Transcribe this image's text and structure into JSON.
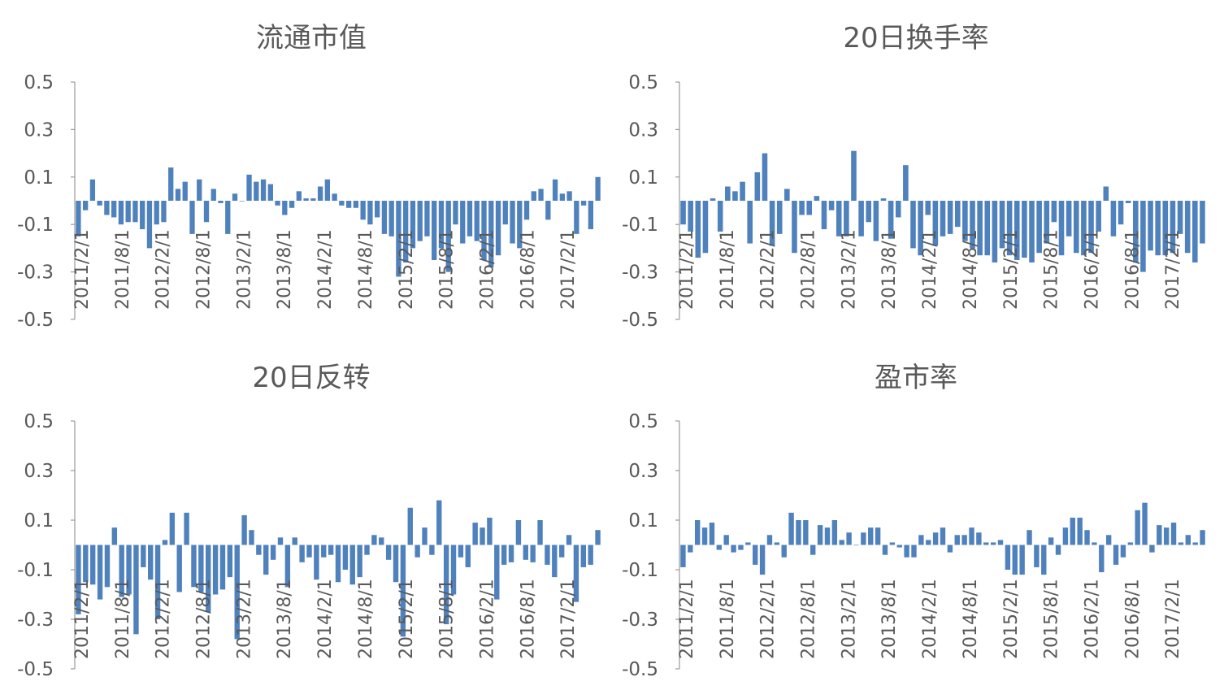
{
  "chart_data": [
    {
      "type": "bar",
      "title": "流通市值",
      "ylim": [
        -0.5,
        0.5
      ],
      "yticks": [
        "0.5",
        "0.3",
        "0.1",
        "-0.1",
        "-0.3",
        "-0.5"
      ],
      "tick_labels": [
        "2011/2/1",
        "2011/8/1",
        "2012/2/1",
        "2012/8/1",
        "2013/2/1",
        "2013/8/1",
        "2014/2/1",
        "2014/8/1",
        "2015/2/1",
        "2015/8/1",
        "2016/2/1",
        "2016/8/1",
        "2017/2/1"
      ],
      "color": "#4F81BD",
      "values": [
        -0.15,
        -0.04,
        0.09,
        -0.02,
        -0.06,
        -0.07,
        -0.1,
        -0.09,
        -0.09,
        -0.12,
        -0.2,
        -0.1,
        -0.09,
        0.14,
        0.05,
        0.08,
        -0.14,
        0.09,
        -0.09,
        0.05,
        -0.01,
        -0.14,
        0.03,
        0.0,
        0.11,
        0.08,
        0.09,
        0.07,
        -0.02,
        -0.06,
        -0.03,
        0.04,
        0.01,
        0.01,
        0.06,
        0.09,
        0.03,
        -0.02,
        -0.03,
        -0.03,
        -0.08,
        -0.1,
        -0.07,
        -0.14,
        -0.15,
        -0.32,
        -0.26,
        -0.2,
        -0.17,
        -0.15,
        -0.25,
        -0.2,
        -0.3,
        -0.1,
        -0.18,
        -0.15,
        -0.17,
        -0.25,
        -0.28,
        -0.23,
        -0.1,
        -0.18,
        -0.2,
        -0.08,
        0.04,
        0.05,
        -0.08,
        0.09,
        0.03,
        0.04,
        -0.14,
        -0.02,
        -0.12,
        0.1
      ]
    },
    {
      "type": "bar",
      "title": "20日换手率",
      "ylim": [
        -0.5,
        0.5
      ],
      "yticks": [
        "0.5",
        "0.3",
        "0.1",
        "-0.1",
        "-0.3",
        "-0.5"
      ],
      "tick_labels": [
        "2011/2/1",
        "2011/8/1",
        "2012/2/1",
        "2012/8/1",
        "2013/2/1",
        "2013/8/1",
        "2014/2/1",
        "2014/8/1",
        "2015/2/1",
        "2015/8/1",
        "2016/2/1",
        "2016/8/1",
        "2017/2/1"
      ],
      "color": "#4F81BD",
      "values": [
        -0.1,
        -0.13,
        -0.24,
        -0.22,
        0.01,
        -0.13,
        0.06,
        0.04,
        0.08,
        -0.18,
        0.12,
        0.2,
        -0.19,
        -0.14,
        0.05,
        -0.22,
        -0.06,
        -0.06,
        0.02,
        -0.12,
        -0.04,
        -0.15,
        -0.15,
        0.21,
        -0.15,
        -0.09,
        -0.17,
        0.01,
        -0.16,
        -0.07,
        0.15,
        -0.2,
        -0.23,
        -0.06,
        -0.19,
        -0.15,
        -0.14,
        -0.11,
        -0.17,
        -0.2,
        -0.23,
        -0.23,
        -0.26,
        -0.2,
        -0.23,
        -0.25,
        -0.24,
        -0.26,
        -0.22,
        -0.18,
        -0.09,
        -0.23,
        -0.15,
        -0.22,
        -0.23,
        -0.22,
        -0.13,
        0.06,
        -0.15,
        -0.1,
        -0.01,
        -0.26,
        -0.3,
        -0.21,
        -0.23,
        -0.23,
        -0.22,
        -0.14,
        -0.22,
        -0.26,
        -0.18
      ]
    },
    {
      "type": "bar",
      "title": "20日反转",
      "ylim": [
        -0.5,
        0.5
      ],
      "yticks": [
        "0.5",
        "0.3",
        "0.1",
        "-0.1",
        "-0.3",
        "-0.5"
      ],
      "tick_labels": [
        "2011/2/1",
        "2011/8/1",
        "2012/2/1",
        "2012/8/1",
        "2013/2/1",
        "2013/8/1",
        "2014/2/1",
        "2014/8/1",
        "2015/2/1",
        "2015/8/1",
        "2016/2/1",
        "2016/8/1",
        "2017/2/1"
      ],
      "color": "#4F81BD",
      "values": [
        -0.28,
        -0.15,
        -0.16,
        -0.22,
        -0.17,
        0.07,
        -0.21,
        -0.2,
        -0.36,
        -0.09,
        -0.14,
        -0.3,
        0.02,
        0.13,
        -0.19,
        0.13,
        -0.17,
        -0.19,
        -0.27,
        -0.2,
        -0.18,
        -0.13,
        -0.38,
        0.12,
        0.06,
        -0.04,
        -0.12,
        -0.06,
        0.03,
        -0.17,
        0.03,
        -0.07,
        -0.05,
        -0.14,
        -0.05,
        -0.04,
        -0.15,
        -0.1,
        -0.16,
        -0.13,
        -0.04,
        0.04,
        0.03,
        -0.06,
        -0.15,
        -0.37,
        0.15,
        -0.05,
        0.07,
        -0.04,
        0.18,
        -0.32,
        -0.2,
        -0.05,
        -0.09,
        0.09,
        0.07,
        0.11,
        -0.22,
        -0.08,
        -0.07,
        0.1,
        -0.06,
        -0.07,
        0.1,
        -0.08,
        -0.13,
        -0.05,
        0.04,
        -0.23,
        -0.09,
        -0.08,
        0.06
      ]
    },
    {
      "type": "bar",
      "title": "盈市率",
      "ylim": [
        -0.5,
        0.5
      ],
      "yticks": [
        "0.5",
        "0.3",
        "0.1",
        "-0.1",
        "-0.3",
        "-0.5"
      ],
      "tick_labels": [
        "2011/2/1",
        "2011/8/1",
        "2012/2/1",
        "2012/8/1",
        "2013/2/1",
        "2013/8/1",
        "2014/2/1",
        "2014/8/1",
        "2015/2/1",
        "2015/8/1",
        "2016/2/1",
        "2016/8/1",
        "2017/2/1"
      ],
      "color": "#4F81BD",
      "values": [
        -0.09,
        -0.03,
        0.1,
        0.07,
        0.09,
        -0.02,
        0.04,
        -0.03,
        -0.02,
        0.01,
        -0.08,
        -0.12,
        0.04,
        0.01,
        -0.05,
        0.13,
        0.1,
        0.1,
        -0.04,
        0.08,
        0.07,
        0.1,
        0.02,
        0.05,
        0.0,
        0.05,
        0.07,
        0.07,
        -0.04,
        0.01,
        -0.01,
        -0.05,
        -0.05,
        0.04,
        0.02,
        0.05,
        0.07,
        -0.03,
        0.04,
        0.04,
        0.07,
        0.05,
        0.01,
        0.01,
        0.02,
        -0.1,
        -0.12,
        -0.12,
        0.06,
        -0.09,
        -0.12,
        0.03,
        -0.04,
        0.07,
        0.11,
        0.11,
        0.06,
        0.01,
        -0.11,
        0.04,
        -0.08,
        -0.05,
        0.01,
        0.14,
        0.17,
        -0.03,
        0.08,
        0.07,
        0.09,
        0.01,
        0.04,
        0.01,
        0.06
      ]
    }
  ]
}
